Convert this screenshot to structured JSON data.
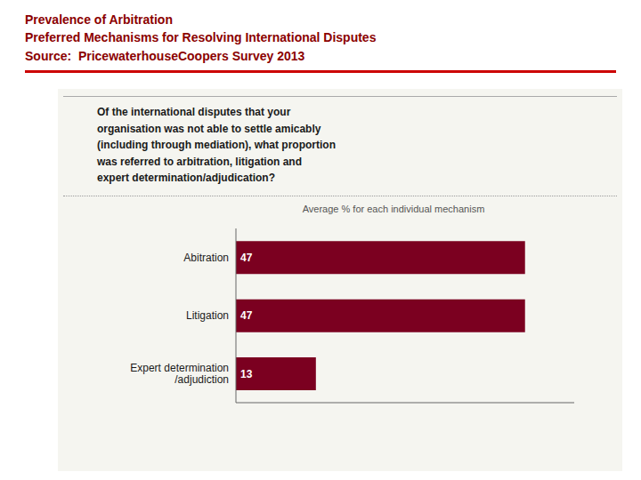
{
  "chart_data": {
    "type": "bar",
    "orientation": "horizontal",
    "title": "Prevalence of Arbitration",
    "subtitle": "Preferred Mechanisms for Resolving International Disputes",
    "annotations": [
      "Source:  PricewaterhouseCoopers Survey 2013",
      "Of the international disputes that your\norganisation was not able to settle amicably\n(including through mediation), what proportion\nwas referred to arbitration, litigation and\nexpert determination/adjudication?",
      "Average % for each individual mechanism"
    ],
    "categories": [
      "Abitration",
      "Litigation",
      "Expert determination\n/adjudiction"
    ],
    "values": [
      47,
      47,
      13
    ],
    "color": "#7B0020",
    "xlim": [
      0,
      55
    ],
    "data_labels": true,
    "tick_labels": "y",
    "grid": false
  }
}
